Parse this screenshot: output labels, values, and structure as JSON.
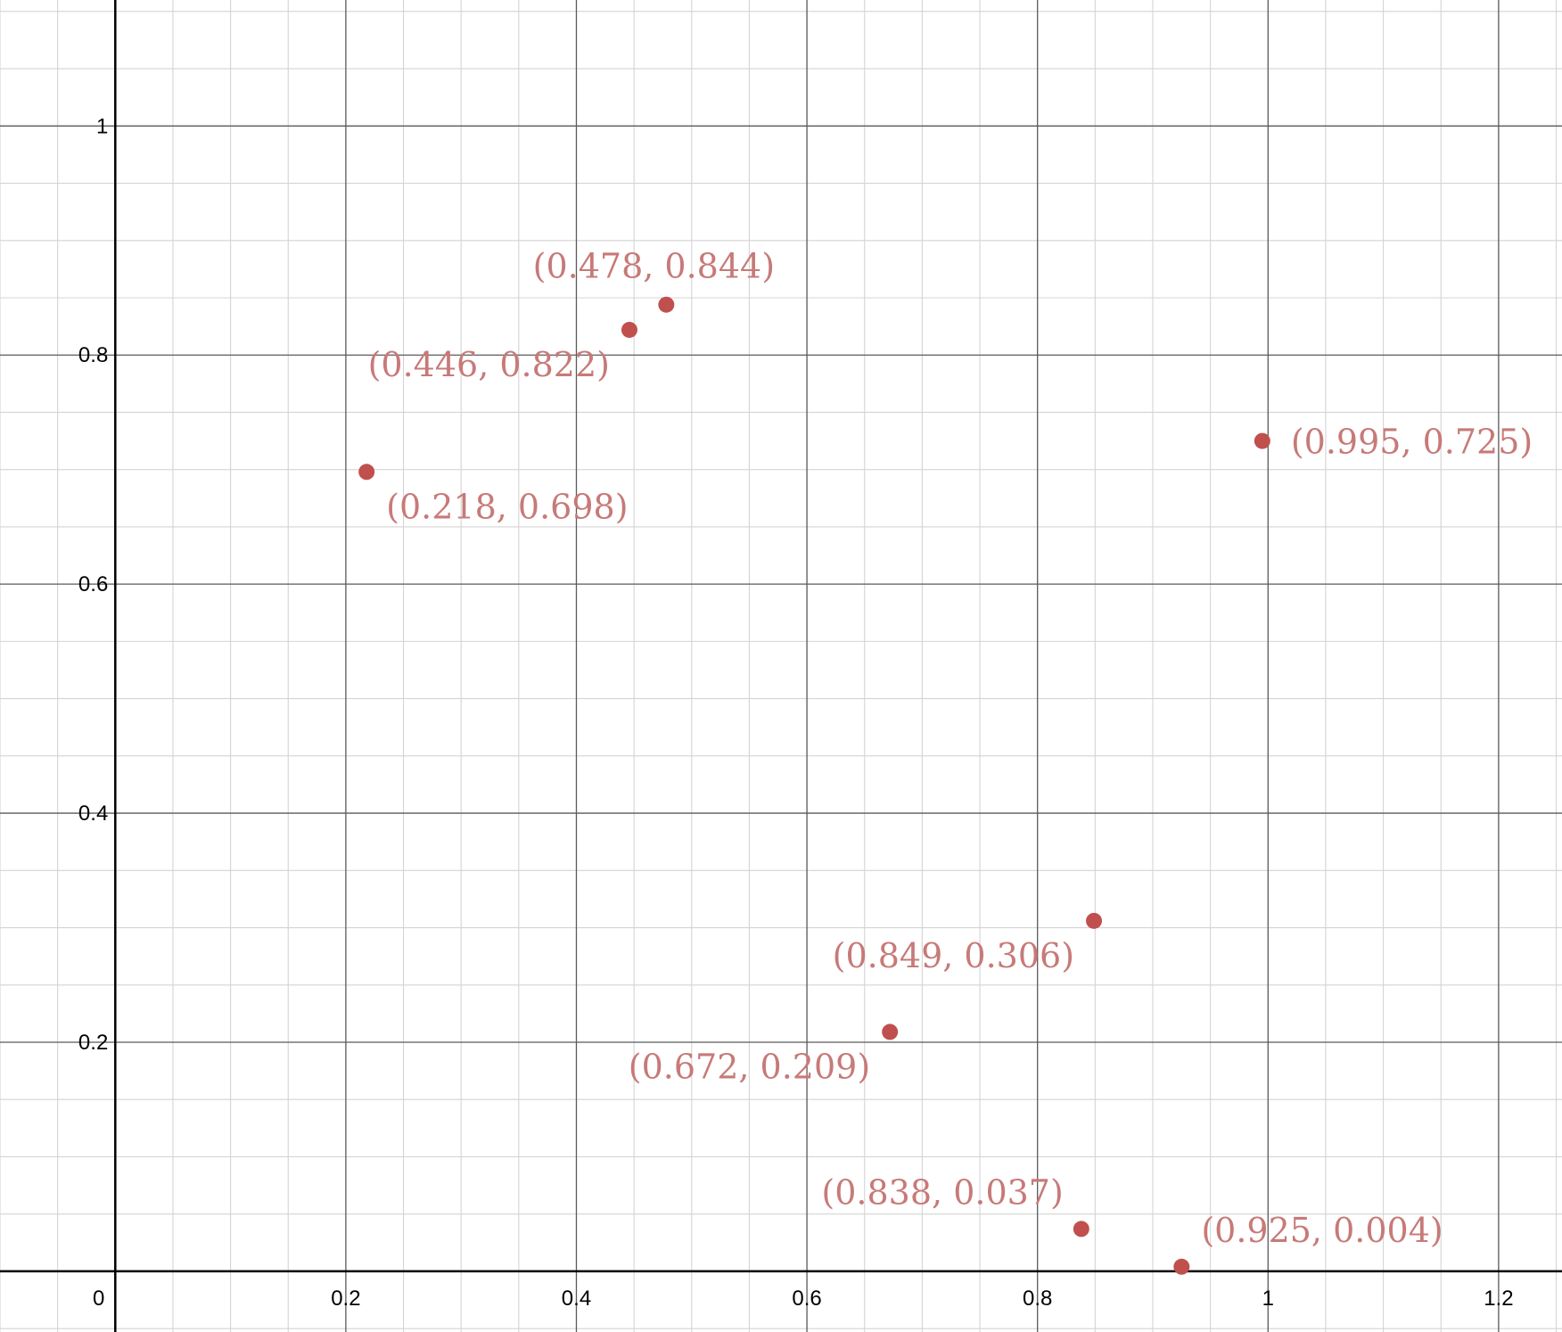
{
  "chart_data": {
    "type": "scatter",
    "title": "",
    "xlabel": "",
    "ylabel": "",
    "xlim": [
      -0.1,
      1.255
    ],
    "ylim": [
      -0.053,
      1.11
    ],
    "grid": true,
    "x_ticks": [
      0,
      0.2,
      0.4,
      0.6,
      0.8,
      1,
      1.2
    ],
    "x_tick_labels": [
      "0",
      "0.2",
      "0.4",
      "0.6",
      "0.8",
      "1",
      "1.2"
    ],
    "y_ticks": [
      0.2,
      0.4,
      0.6,
      0.8,
      1
    ],
    "y_tick_labels": [
      "0.2",
      "0.4",
      "0.6",
      "0.8",
      "1"
    ],
    "point_color": "#c0504d",
    "label_color": "#c77a78",
    "points": [
      {
        "x": 0.218,
        "y": 0.698,
        "label": "(0.218, 0.698)",
        "label_pos": "below-right"
      },
      {
        "x": 0.446,
        "y": 0.822,
        "label": "(0.446, 0.822)",
        "label_pos": "below-left"
      },
      {
        "x": 0.478,
        "y": 0.844,
        "label": "(0.478, 0.844)",
        "label_pos": "above"
      },
      {
        "x": 0.995,
        "y": 0.725,
        "label": "(0.995, 0.725)",
        "label_pos": "right"
      },
      {
        "x": 0.849,
        "y": 0.306,
        "label": "(0.849, 0.306)",
        "label_pos": "below-left"
      },
      {
        "x": 0.672,
        "y": 0.209,
        "label": "(0.672, 0.209)",
        "label_pos": "below-left"
      },
      {
        "x": 0.838,
        "y": 0.037,
        "label": "(0.838, 0.037)",
        "label_pos": "above-left"
      },
      {
        "x": 0.925,
        "y": 0.004,
        "label": "(0.925, 0.004)",
        "label_pos": "above-right"
      }
    ]
  }
}
